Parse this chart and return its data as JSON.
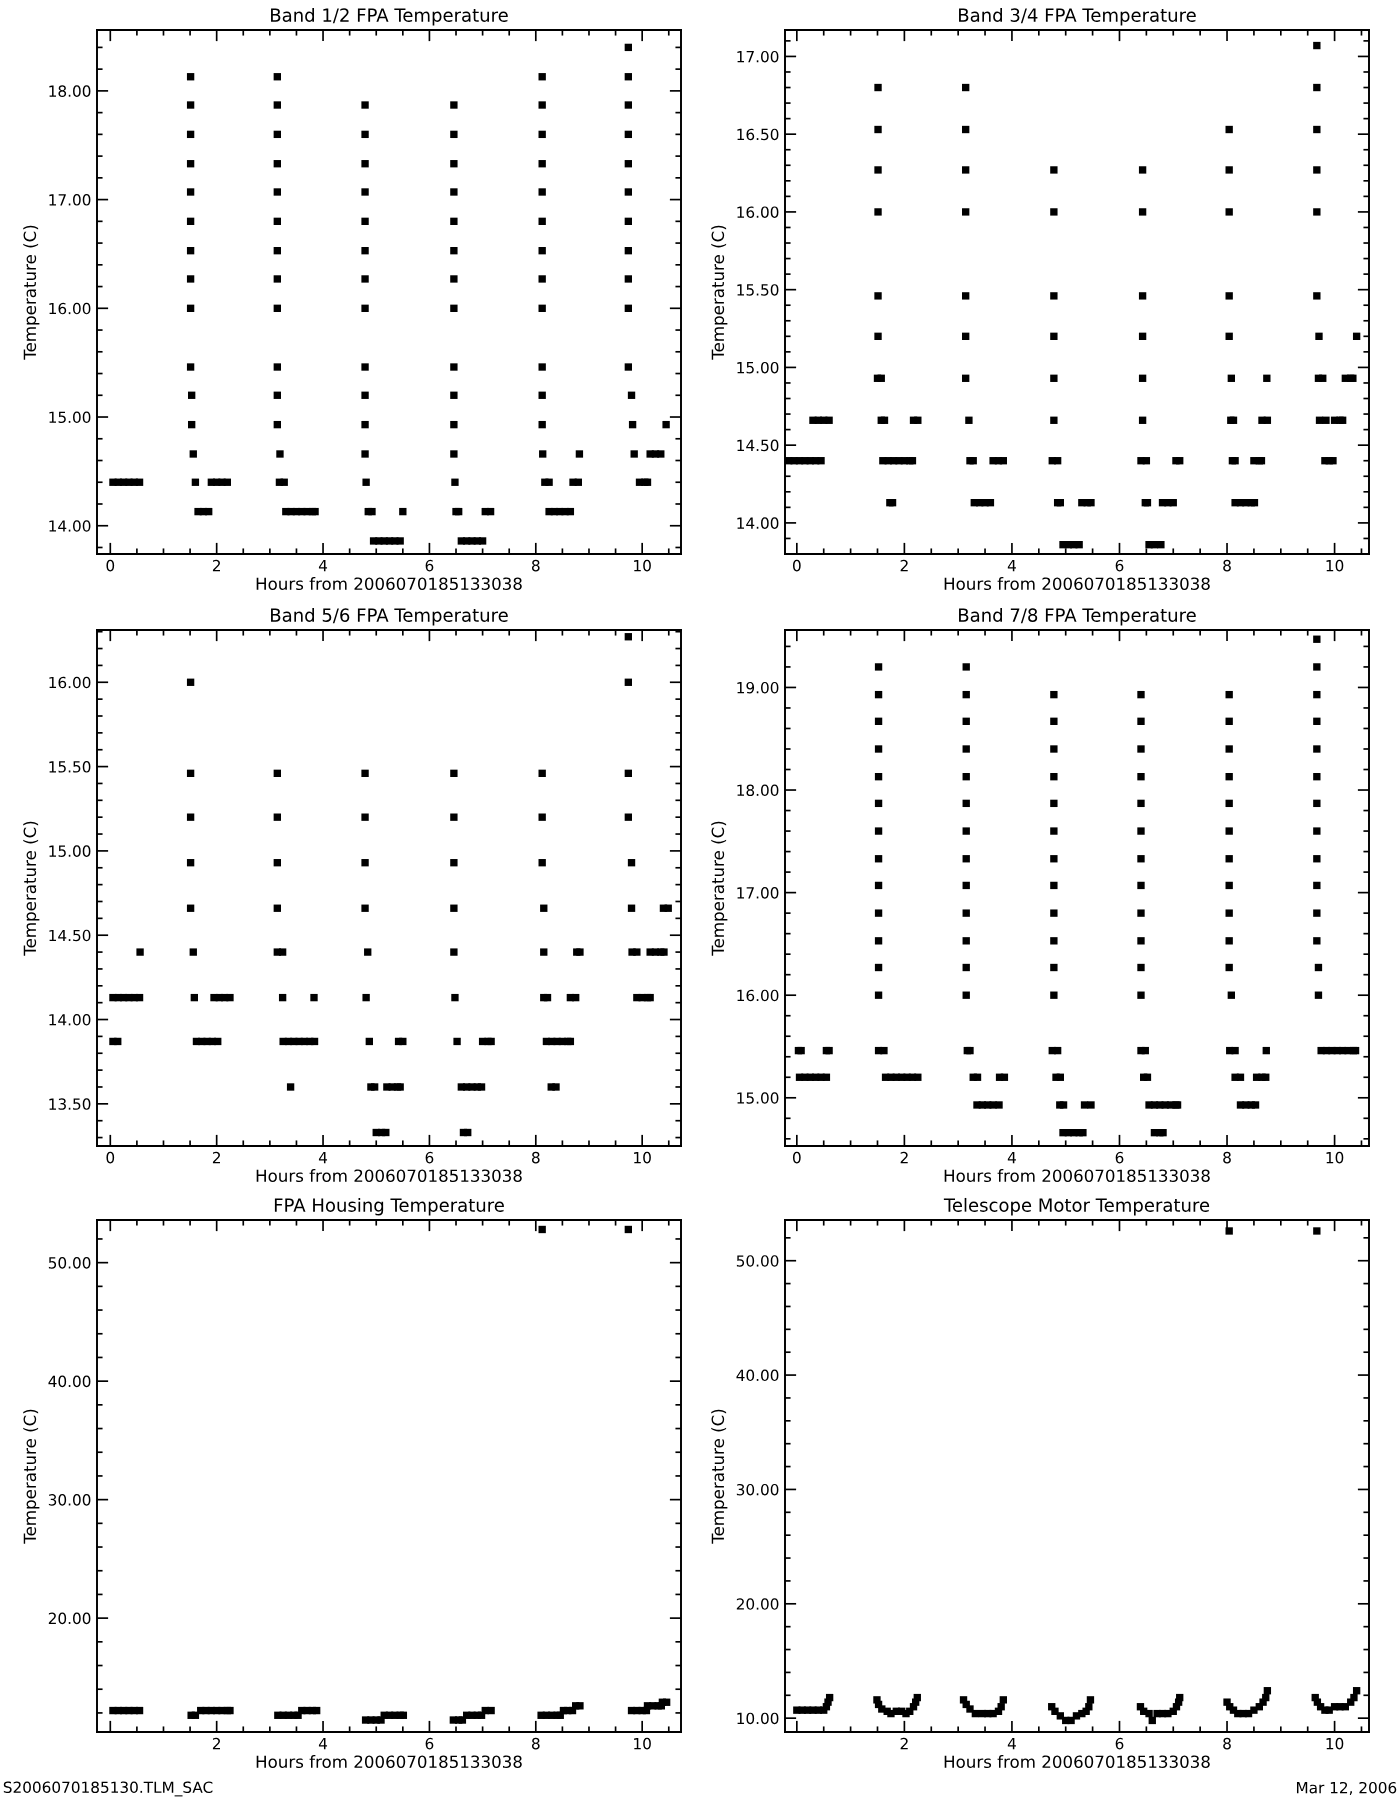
{
  "chart_data": [
    {
      "type": "scatter",
      "title": "Band 1/2 FPA Temperature",
      "xlabel": "Hours from 2006070185133038",
      "ylabel": "Temperature (C)",
      "marker": "square",
      "xlim": [
        -0.25,
        10.73
      ],
      "ylim": [
        13.74,
        18.56
      ],
      "xticks": [
        0,
        2,
        4,
        6,
        8,
        10
      ],
      "yticks": [
        {
          "value": 14,
          "label": "14.00"
        },
        {
          "value": 15,
          "label": "15.00"
        },
        {
          "value": 16,
          "label": "16.00"
        },
        {
          "value": 17,
          "label": "17.00"
        },
        {
          "value": 18,
          "label": "18.00"
        }
      ],
      "series": [
        {
          "color": "#000000",
          "x": [
            0.05,
            0.15,
            0.25,
            0.35,
            0.45,
            0.55,
            1.51,
            1.51,
            1.51,
            1.51,
            1.51,
            1.51,
            1.51,
            1.51,
            1.51,
            1.51,
            1.53,
            1.53,
            1.56,
            1.6,
            1.65,
            1.75,
            1.85,
            1.9,
            2.0,
            2.1,
            2.2,
            3.14,
            3.14,
            3.14,
            3.14,
            3.14,
            3.14,
            3.14,
            3.14,
            3.14,
            3.14,
            3.14,
            3.14,
            3.19,
            3.18,
            3.27,
            3.3,
            3.4,
            3.5,
            3.6,
            3.7,
            3.8,
            3.85,
            4.79,
            4.79,
            4.79,
            4.79,
            4.79,
            4.79,
            4.79,
            4.79,
            4.79,
            4.79,
            4.79,
            4.79,
            4.81,
            4.85,
            4.92,
            4.95,
            5.05,
            5.15,
            5.25,
            5.35,
            5.45,
            5.5,
            6.46,
            6.46,
            6.46,
            6.46,
            6.46,
            6.46,
            6.46,
            6.46,
            6.46,
            6.46,
            6.46,
            6.46,
            6.48,
            6.5,
            6.55,
            6.6,
            6.7,
            6.8,
            6.9,
            7.0,
            7.05,
            7.15,
            8.12,
            8.12,
            8.12,
            8.12,
            8.12,
            8.12,
            8.12,
            8.12,
            8.12,
            8.12,
            8.12,
            8.12,
            8.13,
            8.17,
            8.25,
            8.25,
            8.35,
            8.45,
            8.55,
            8.65,
            8.7,
            8.8,
            8.82,
            9.74,
            9.74,
            9.74,
            9.74,
            9.74,
            9.74,
            9.74,
            9.74,
            9.74,
            9.74,
            9.74,
            9.8,
            9.82,
            9.85,
            9.95,
            10.05,
            10.1,
            10.15,
            10.25,
            10.35,
            10.45
          ],
          "values": [
            14.4,
            14.4,
            14.4,
            14.4,
            14.4,
            14.4,
            18.13,
            17.87,
            17.6,
            17.33,
            17.07,
            16.8,
            16.53,
            16.27,
            16.0,
            15.46,
            15.2,
            14.93,
            14.66,
            14.4,
            14.13,
            14.13,
            14.13,
            14.4,
            14.4,
            14.4,
            14.4,
            18.13,
            17.87,
            17.6,
            17.33,
            17.07,
            16.8,
            16.53,
            16.27,
            16.0,
            15.46,
            15.2,
            14.93,
            14.66,
            14.4,
            14.4,
            14.13,
            14.13,
            14.13,
            14.13,
            14.13,
            14.13,
            14.13,
            17.87,
            17.6,
            17.33,
            17.07,
            16.8,
            16.53,
            16.27,
            16.0,
            15.46,
            15.2,
            14.93,
            14.66,
            14.4,
            14.13,
            14.13,
            13.86,
            13.86,
            13.86,
            13.86,
            13.86,
            13.86,
            14.13,
            17.87,
            17.6,
            17.33,
            17.07,
            16.8,
            16.53,
            16.27,
            16.0,
            15.46,
            15.2,
            14.93,
            14.66,
            14.4,
            14.13,
            14.13,
            13.86,
            13.86,
            13.86,
            13.86,
            13.86,
            14.13,
            14.13,
            18.13,
            17.87,
            17.6,
            17.33,
            17.07,
            16.8,
            16.53,
            16.27,
            16.0,
            15.46,
            15.2,
            14.93,
            14.66,
            14.4,
            14.4,
            14.13,
            14.13,
            14.13,
            14.13,
            14.13,
            14.4,
            14.4,
            14.66,
            18.4,
            18.13,
            17.87,
            17.6,
            17.33,
            17.07,
            16.8,
            16.53,
            16.27,
            16.0,
            15.46,
            15.2,
            14.93,
            14.66,
            14.4,
            14.4,
            14.4,
            14.66,
            14.66,
            14.66,
            14.93
          ]
        }
      ]
    },
    {
      "type": "scatter",
      "title": "Band 3/4 FPA Temperature",
      "xlabel": "Hours from 2006070185133038",
      "ylabel": "Temperature (C)",
      "marker": "square",
      "xlim": [
        -0.22,
        10.64
      ],
      "ylim": [
        13.8,
        17.17
      ],
      "xticks": [
        0,
        2,
        4,
        6,
        8,
        10
      ],
      "yticks": [
        {
          "value": 14,
          "label": "14.00"
        },
        {
          "value": 14.5,
          "label": "14.50"
        },
        {
          "value": 15,
          "label": "15.00"
        },
        {
          "value": 15.5,
          "label": "15.50"
        },
        {
          "value": 16,
          "label": "16.00"
        },
        {
          "value": 16.5,
          "label": "16.50"
        },
        {
          "value": 17,
          "label": "17.00"
        }
      ],
      "series": [
        {
          "color": "#000000",
          "x": [
            -0.15,
            -0.05,
            0.05,
            0.15,
            0.25,
            0.35,
            0.45,
            0.3,
            0.4,
            0.5,
            0.6,
            1.51,
            1.51,
            1.51,
            1.51,
            1.51,
            1.51,
            1.5,
            1.57,
            1.57,
            1.63,
            1.6,
            1.7,
            1.8,
            1.9,
            2.0,
            2.1,
            2.15,
            1.73,
            1.78,
            2.17,
            2.25,
            3.14,
            3.14,
            3.14,
            3.14,
            3.14,
            3.14,
            3.14,
            3.2,
            3.22,
            3.28,
            3.3,
            3.4,
            3.5,
            3.6,
            3.65,
            3.75,
            3.84,
            4.78,
            4.78,
            4.78,
            4.78,
            4.78,
            4.78,
            4.75,
            4.85,
            4.85,
            4.9,
            4.95,
            5.05,
            5.15,
            5.25,
            5.3,
            5.4,
            5.47,
            6.43,
            6.43,
            6.43,
            6.43,
            6.43,
            6.43,
            6.4,
            6.5,
            6.48,
            6.52,
            6.55,
            6.65,
            6.77,
            6.8,
            6.9,
            7.0,
            7.05,
            7.12,
            8.04,
            8.04,
            8.04,
            8.04,
            8.04,
            8.08,
            8.07,
            8.12,
            8.1,
            8.15,
            8.15,
            8.25,
            8.35,
            8.45,
            8.51,
            8.5,
            8.6,
            8.64,
            8.65,
            8.75,
            8.74,
            9.67,
            9.67,
            9.67,
            9.67,
            9.67,
            9.67,
            9.71,
            9.7,
            9.78,
            9.72,
            9.84,
            9.82,
            9.9,
            9.97,
            10.0,
            10.1,
            10.15,
            10.2,
            10.3,
            10.34,
            10.41
          ],
          "values": [
            14.4,
            14.4,
            14.4,
            14.4,
            14.4,
            14.4,
            14.4,
            14.66,
            14.66,
            14.66,
            14.66,
            16.8,
            16.53,
            16.27,
            16.0,
            15.46,
            15.2,
            14.93,
            14.93,
            14.66,
            14.66,
            14.4,
            14.4,
            14.4,
            14.4,
            14.4,
            14.4,
            14.4,
            14.13,
            14.13,
            14.66,
            14.66,
            16.8,
            16.53,
            16.27,
            16.0,
            15.46,
            15.2,
            14.93,
            14.66,
            14.4,
            14.4,
            14.13,
            14.13,
            14.13,
            14.13,
            14.4,
            14.4,
            14.4,
            16.27,
            16.0,
            15.46,
            15.2,
            14.93,
            14.66,
            14.4,
            14.4,
            14.13,
            14.13,
            13.86,
            13.86,
            13.86,
            13.86,
            14.13,
            14.13,
            14.13,
            16.27,
            16.0,
            15.46,
            15.2,
            14.93,
            14.66,
            14.4,
            14.4,
            14.13,
            14.13,
            13.86,
            13.86,
            13.86,
            14.13,
            14.13,
            14.13,
            14.4,
            14.4,
            16.53,
            16.27,
            16.0,
            15.46,
            15.2,
            14.93,
            14.66,
            14.66,
            14.4,
            14.4,
            14.13,
            14.13,
            14.13,
            14.13,
            14.13,
            14.4,
            14.4,
            14.4,
            14.66,
            14.66,
            14.93,
            17.07,
            16.8,
            16.53,
            16.27,
            16.0,
            15.46,
            15.2,
            14.93,
            14.93,
            14.66,
            14.66,
            14.4,
            14.4,
            14.4,
            14.66,
            14.66,
            14.66,
            14.93,
            14.93,
            14.93,
            15.2
          ]
        }
      ]
    },
    {
      "type": "scatter",
      "title": "Band 5/6 FPA Temperature",
      "xlabel": "Hours from 2006070185133038",
      "ylabel": "Temperature (C)",
      "marker": "square",
      "xlim": [
        -0.25,
        10.73
      ],
      "ylim": [
        13.25,
        16.31
      ],
      "xticks": [
        0,
        2,
        4,
        6,
        8,
        10
      ],
      "yticks": [
        {
          "value": 13.5,
          "label": "13.50"
        },
        {
          "value": 14,
          "label": "14.00"
        },
        {
          "value": 14.5,
          "label": "14.50"
        },
        {
          "value": 15,
          "label": "15.00"
        },
        {
          "value": 15.5,
          "label": "15.50"
        },
        {
          "value": 16,
          "label": "16.00"
        }
      ],
      "series": [
        {
          "color": "#000000",
          "x": [
            0.05,
            0.15,
            0.25,
            0.35,
            0.45,
            0.55,
            0.05,
            0.14,
            0.56,
            1.51,
            1.51,
            1.51,
            1.51,
            1.51,
            1.56,
            1.58,
            1.62,
            1.72,
            1.82,
            1.92,
            2.02,
            1.95,
            2.05,
            2.15,
            2.25,
            3.14,
            3.14,
            3.14,
            3.14,
            3.14,
            3.24,
            3.24,
            3.25,
            3.35,
            3.45,
            3.55,
            3.65,
            3.75,
            3.84,
            3.39,
            3.83,
            4.79,
            4.79,
            4.79,
            4.79,
            4.84,
            4.81,
            4.87,
            4.9,
            4.97,
            5.0,
            5.1,
            5.18,
            5.2,
            5.3,
            5.4,
            5.45,
            5.42,
            5.5,
            6.46,
            6.46,
            6.46,
            6.46,
            6.46,
            6.48,
            6.52,
            6.6,
            6.7,
            6.8,
            6.9,
            6.98,
            6.64,
            6.72,
            7.0,
            7.1,
            7.16,
            8.12,
            8.12,
            8.12,
            8.15,
            8.15,
            8.15,
            8.22,
            8.2,
            8.3,
            8.4,
            8.5,
            8.6,
            8.65,
            8.29,
            8.38,
            8.65,
            8.75,
            8.77,
            8.83,
            9.74,
            9.74,
            9.74,
            9.74,
            9.8,
            9.8,
            9.81,
            9.9,
            9.9,
            10.0,
            10.1,
            10.15,
            10.15,
            10.25,
            10.35,
            10.41,
            10.4,
            10.49
          ],
          "values": [
            14.13,
            14.13,
            14.13,
            14.13,
            14.13,
            14.13,
            13.87,
            13.87,
            14.4,
            16.0,
            15.46,
            15.2,
            14.93,
            14.66,
            14.4,
            14.13,
            13.87,
            13.87,
            13.87,
            13.87,
            13.87,
            14.13,
            14.13,
            14.13,
            14.13,
            15.46,
            15.2,
            14.93,
            14.66,
            14.4,
            14.4,
            14.13,
            13.87,
            13.87,
            13.87,
            13.87,
            13.87,
            13.87,
            13.87,
            13.6,
            14.13,
            15.46,
            15.2,
            14.93,
            14.66,
            14.4,
            14.13,
            13.87,
            13.6,
            13.6,
            13.33,
            13.33,
            13.33,
            13.6,
            13.6,
            13.6,
            13.6,
            13.87,
            13.87,
            15.46,
            15.2,
            14.93,
            14.66,
            14.4,
            14.13,
            13.87,
            13.6,
            13.6,
            13.6,
            13.6,
            13.6,
            13.33,
            13.33,
            13.87,
            13.87,
            13.87,
            15.46,
            15.2,
            14.93,
            14.66,
            14.4,
            14.13,
            14.13,
            13.87,
            13.87,
            13.87,
            13.87,
            13.87,
            13.87,
            13.6,
            13.6,
            14.13,
            14.13,
            14.4,
            14.4,
            16.27,
            16.0,
            15.46,
            15.2,
            14.93,
            14.66,
            14.4,
            14.4,
            14.13,
            14.13,
            14.13,
            14.13,
            14.4,
            14.4,
            14.4,
            14.4,
            14.66,
            14.66
          ]
        }
      ]
    },
    {
      "type": "scatter",
      "title": "Band 7/8 FPA Temperature",
      "xlabel": "Hours from 2006070185133038",
      "ylabel": "Temperature (C)",
      "marker": "square",
      "xlim": [
        -0.22,
        10.64
      ],
      "ylim": [
        14.53,
        19.56
      ],
      "xticks": [
        0,
        2,
        4,
        6,
        8,
        10
      ],
      "yticks": [
        {
          "value": 15,
          "label": "15.00"
        },
        {
          "value": 16,
          "label": "16.00"
        },
        {
          "value": 17,
          "label": "17.00"
        },
        {
          "value": 18,
          "label": "18.00"
        },
        {
          "value": 19,
          "label": "19.00"
        }
      ],
      "series": [
        {
          "color": "#000000",
          "x": [
            0.03,
            0.08,
            0.05,
            0.15,
            0.25,
            0.35,
            0.45,
            0.55,
            0.55,
            0.6,
            1.52,
            1.52,
            1.52,
            1.52,
            1.52,
            1.52,
            1.52,
            1.52,
            1.52,
            1.52,
            1.52,
            1.52,
            1.52,
            1.52,
            1.62,
            1.65,
            1.75,
            1.85,
            1.95,
            2.05,
            2.15,
            2.25,
            3.15,
            3.15,
            3.15,
            3.15,
            3.15,
            3.15,
            3.15,
            3.15,
            3.15,
            3.15,
            3.15,
            3.15,
            3.15,
            3.17,
            3.22,
            3.28,
            3.36,
            3.35,
            3.45,
            3.55,
            3.65,
            3.76,
            3.77,
            3.86,
            4.78,
            4.78,
            4.78,
            4.78,
            4.78,
            4.78,
            4.78,
            4.78,
            4.78,
            4.78,
            4.78,
            4.78,
            4.75,
            4.85,
            4.82,
            4.9,
            4.89,
            4.96,
            4.95,
            5.05,
            5.15,
            5.25,
            5.32,
            5.35,
            5.47,
            6.4,
            6.4,
            6.4,
            6.4,
            6.4,
            6.4,
            6.4,
            6.4,
            6.4,
            6.4,
            6.4,
            6.4,
            6.4,
            6.48,
            6.45,
            6.52,
            6.55,
            6.65,
            6.75,
            6.85,
            6.95,
            7.05,
            7.08,
            6.65,
            6.75,
            6.81,
            8.04,
            8.04,
            8.04,
            8.04,
            8.04,
            8.04,
            8.04,
            8.04,
            8.04,
            8.04,
            8.04,
            8.08,
            8.05,
            8.15,
            8.15,
            8.25,
            8.25,
            8.35,
            8.45,
            8.53,
            8.55,
            8.65,
            8.72,
            8.73,
            9.67,
            9.67,
            9.67,
            9.67,
            9.67,
            9.67,
            9.67,
            9.67,
            9.67,
            9.67,
            9.67,
            9.67,
            9.7,
            9.7,
            9.75,
            9.85,
            9.95,
            10.05,
            10.15,
            10.25,
            10.35,
            10.39
          ],
          "values": [
            15.46,
            15.46,
            15.2,
            15.2,
            15.2,
            15.2,
            15.2,
            15.2,
            15.46,
            15.46,
            19.2,
            18.93,
            18.67,
            18.4,
            18.13,
            17.87,
            17.6,
            17.33,
            17.07,
            16.8,
            16.53,
            16.27,
            16.0,
            15.46,
            15.46,
            15.2,
            15.2,
            15.2,
            15.2,
            15.2,
            15.2,
            15.2,
            19.2,
            18.93,
            18.67,
            18.4,
            18.13,
            17.87,
            17.6,
            17.33,
            17.07,
            16.8,
            16.53,
            16.27,
            16.0,
            15.46,
            15.46,
            15.2,
            15.2,
            14.93,
            14.93,
            14.93,
            14.93,
            14.93,
            15.2,
            15.2,
            18.93,
            18.67,
            18.4,
            18.13,
            17.87,
            17.6,
            17.33,
            17.07,
            16.8,
            16.53,
            16.27,
            16.0,
            15.46,
            15.46,
            15.2,
            15.2,
            14.93,
            14.93,
            14.66,
            14.66,
            14.66,
            14.66,
            14.66,
            14.93,
            14.93,
            18.93,
            18.67,
            18.4,
            18.13,
            17.87,
            17.6,
            17.33,
            17.07,
            16.8,
            16.53,
            16.27,
            16.0,
            15.46,
            15.46,
            15.2,
            15.2,
            14.93,
            14.93,
            14.93,
            14.93,
            14.93,
            14.93,
            14.93,
            14.66,
            14.66,
            14.66,
            18.93,
            18.67,
            18.4,
            18.13,
            17.87,
            17.6,
            17.33,
            17.07,
            16.8,
            16.53,
            16.27,
            16.0,
            15.46,
            15.46,
            15.2,
            15.2,
            14.93,
            14.93,
            14.93,
            14.93,
            15.2,
            15.2,
            15.2,
            15.46,
            19.47,
            19.2,
            18.93,
            18.67,
            18.4,
            18.13,
            17.87,
            17.6,
            17.33,
            17.07,
            16.8,
            16.53,
            16.27,
            16.0,
            15.46,
            15.46,
            15.46,
            15.46,
            15.46,
            15.46,
            15.46,
            15.46
          ]
        }
      ]
    },
    {
      "type": "scatter",
      "title": "FPA Housing Temperature",
      "xlabel": "Hours from 2006070185133038",
      "ylabel": "Temperature (C)",
      "marker": "square",
      "xlim": [
        -0.25,
        10.73
      ],
      "ylim": [
        10.39,
        53.6
      ],
      "xticks": [
        {
          "value": 0,
          "label": null
        },
        2,
        4,
        6,
        8,
        10
      ],
      "yticks": [
        {
          "value": 20,
          "label": "20.00"
        },
        {
          "value": 30,
          "label": "30.00"
        },
        {
          "value": 40,
          "label": "40.00"
        },
        {
          "value": 50,
          "label": "50.00"
        }
      ],
      "annotations": [
        "S2006070185130.TLM_SAC"
      ],
      "series": [
        {
          "color": "#000000",
          "x": [
            0.05,
            0.15,
            0.25,
            0.35,
            0.45,
            0.55,
            1.52,
            1.6,
            1.7,
            1.8,
            1.9,
            2.0,
            2.1,
            2.2,
            2.25,
            3.15,
            3.25,
            3.35,
            3.45,
            3.53,
            3.6,
            3.7,
            3.8,
            3.88,
            4.8,
            4.9,
            5.0,
            5.09,
            5.15,
            5.25,
            5.35,
            5.45,
            5.51,
            6.45,
            6.55,
            6.62,
            6.7,
            6.8,
            6.9,
            6.98,
            7.05,
            7.16,
            8.1,
            8.2,
            8.3,
            8.4,
            8.46,
            8.52,
            8.6,
            8.69,
            8.75,
            8.83,
            8.12,
            9.74,
            9.8,
            9.9,
            10.0,
            10.08,
            10.1,
            10.2,
            10.3,
            10.36,
            10.38,
            10.46
          ],
          "values": [
            12.2,
            12.2,
            12.2,
            12.2,
            12.2,
            12.2,
            11.8,
            11.8,
            12.2,
            12.2,
            12.2,
            12.2,
            12.2,
            12.2,
            12.2,
            11.8,
            11.8,
            11.8,
            11.8,
            11.8,
            12.2,
            12.2,
            12.2,
            12.2,
            11.4,
            11.4,
            11.4,
            11.4,
            11.8,
            11.8,
            11.8,
            11.8,
            11.8,
            11.4,
            11.4,
            11.4,
            11.8,
            11.8,
            11.8,
            11.8,
            12.2,
            12.2,
            11.8,
            11.8,
            11.8,
            11.8,
            11.8,
            12.2,
            12.2,
            12.2,
            12.6,
            12.6,
            52.8,
            52.8,
            12.2,
            12.2,
            12.2,
            12.2,
            12.6,
            12.6,
            12.6,
            12.6,
            12.9,
            12.9
          ]
        }
      ]
    },
    {
      "type": "scatter",
      "title": "Telescope Motor Temperature",
      "xlabel": "Hours from 2006070185133038",
      "ylabel": "Temperature (C)",
      "marker": "square",
      "xlim": [
        -0.22,
        10.64
      ],
      "ylim": [
        8.79,
        53.56
      ],
      "xticks": [
        {
          "value": 0,
          "label": null
        },
        2,
        4,
        6,
        8,
        10
      ],
      "yticks": [
        {
          "value": 10,
          "label": "10.00"
        },
        {
          "value": 20,
          "label": "20.00"
        },
        {
          "value": 30,
          "label": "30.00"
        },
        {
          "value": 40,
          "label": "40.00"
        },
        {
          "value": 50,
          "label": "50.00"
        }
      ],
      "annotations": [
        "Mar 12, 2006"
      ],
      "series": [
        {
          "color": "#000000",
          "x": [
            0.0,
            0.1,
            0.2,
            0.3,
            0.4,
            0.5,
            0.55,
            0.58,
            0.61,
            1.49,
            1.52,
            1.58,
            1.68,
            1.75,
            1.85,
            1.95,
            2.03,
            2.1,
            2.17,
            2.21,
            2.24,
            3.1,
            3.15,
            3.22,
            3.32,
            3.45,
            3.55,
            3.65,
            3.75,
            3.8,
            3.84,
            4.74,
            4.8,
            4.9,
            5.0,
            5.1,
            5.2,
            5.3,
            5.38,
            5.43,
            5.46,
            6.39,
            6.45,
            6.55,
            6.61,
            6.7,
            6.8,
            6.9,
            7.0,
            7.06,
            7.1,
            7.12,
            8.0,
            8.05,
            8.12,
            8.2,
            8.3,
            8.4,
            8.5,
            8.6,
            8.67,
            8.72,
            8.75,
            9.64,
            9.68,
            9.74,
            9.82,
            9.9,
            10.0,
            10.1,
            10.2,
            10.3,
            10.36,
            10.41,
            8.04,
            9.67
          ],
          "values": [
            10.7,
            10.7,
            10.7,
            10.7,
            10.7,
            10.7,
            11.0,
            11.4,
            11.8,
            11.6,
            11.2,
            10.8,
            10.6,
            10.4,
            10.6,
            10.6,
            10.4,
            10.6,
            11.0,
            11.4,
            11.8,
            11.6,
            11.2,
            10.8,
            10.4,
            10.4,
            10.4,
            10.4,
            10.6,
            11.0,
            11.6,
            11.0,
            10.6,
            10.2,
            9.8,
            9.8,
            10.2,
            10.4,
            10.6,
            11.0,
            11.6,
            11.0,
            10.6,
            10.4,
            9.8,
            10.4,
            10.4,
            10.4,
            10.6,
            11.0,
            11.4,
            11.8,
            11.4,
            11.0,
            10.7,
            10.4,
            10.4,
            10.4,
            10.7,
            11.0,
            11.4,
            11.8,
            12.4,
            11.8,
            11.4,
            11.0,
            10.7,
            10.7,
            11.0,
            11.0,
            11.0,
            11.4,
            11.8,
            12.4,
            52.6,
            52.6
          ]
        }
      ]
    }
  ]
}
